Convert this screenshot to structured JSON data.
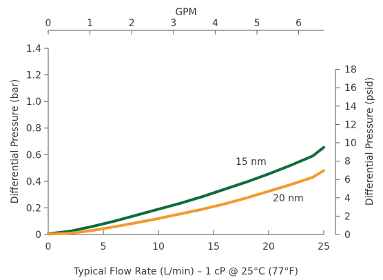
{
  "chart_data": {
    "type": "line",
    "xlabel": "Typical Flow Rate (L/min) – 1 cP @ 25°C (77°F)",
    "ylabel": "Differential Pressure (bar)",
    "x2label": "GPM",
    "y2label": "Differential Pressure (psid)",
    "xlim": [
      0,
      25
    ],
    "ylim": [
      0,
      1.4
    ],
    "x2lim": [
      0,
      6.6
    ],
    "y2lim": [
      0,
      20.3
    ],
    "xticks": [
      0,
      5,
      10,
      15,
      20,
      25
    ],
    "yticks": [
      0,
      0.2,
      0.4,
      0.6,
      0.8,
      1.0,
      1.2,
      1.4
    ],
    "x2ticks": [
      0,
      1,
      2,
      3,
      4,
      5,
      6
    ],
    "y2ticks": [
      0,
      2,
      4,
      6,
      8,
      10,
      12,
      14,
      16,
      18
    ],
    "xtick_labels": [
      "0",
      "5",
      "10",
      "15",
      "20",
      "25"
    ],
    "ytick_labels": [
      "0",
      "0.2",
      "0.4",
      "0.6",
      "0.8",
      "1.0",
      "1.2",
      "1.4"
    ],
    "x2tick_labels": [
      "0",
      "1",
      "2",
      "3",
      "4",
      "5",
      "6"
    ],
    "y2tick_labels": [
      "0",
      "2",
      "4",
      "6",
      "8",
      "10",
      "12",
      "14",
      "16",
      "18"
    ],
    "grid": false,
    "series": [
      {
        "name": "15 nm",
        "color": "#0f6b3a",
        "x": [
          0,
          2,
          4,
          6,
          8,
          10,
          12,
          14,
          16,
          18,
          20,
          22,
          24,
          25
        ],
        "values": [
          0.005,
          0.025,
          0.06,
          0.1,
          0.145,
          0.19,
          0.235,
          0.285,
          0.34,
          0.395,
          0.455,
          0.52,
          0.59,
          0.655
        ]
      },
      {
        "name": "20 nm",
        "color": "#f29a2e",
        "x": [
          0,
          2,
          4,
          6,
          8,
          10,
          12,
          14,
          16,
          18,
          20,
          22,
          24,
          25
        ],
        "values": [
          0.003,
          0.01,
          0.03,
          0.058,
          0.088,
          0.12,
          0.155,
          0.19,
          0.23,
          0.275,
          0.325,
          0.375,
          0.43,
          0.48
        ]
      }
    ]
  }
}
